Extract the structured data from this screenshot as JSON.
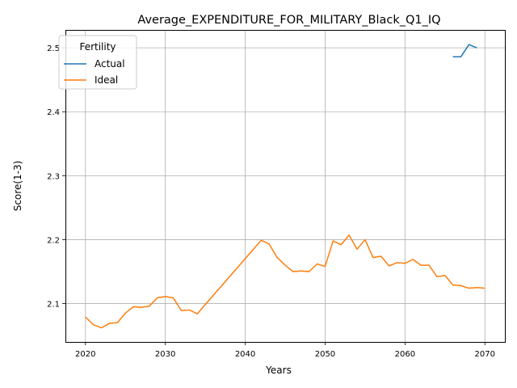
{
  "chart_data": {
    "type": "line",
    "title": "Average_EXPENDITURE_FOR_MILITARY_Black_Q1_IQ",
    "xlabel": "Years",
    "ylabel": "Score(1-3)",
    "xlim": [
      2017.5,
      2072.5
    ],
    "ylim": [
      2.04,
      2.528
    ],
    "xticks": [
      2020,
      2030,
      2040,
      2050,
      2060,
      2070
    ],
    "yticks": [
      2.1,
      2.2,
      2.3,
      2.4,
      2.5
    ],
    "xtick_labels": [
      "2020",
      "2030",
      "2040",
      "2050",
      "2060",
      "2070"
    ],
    "ytick_labels": [
      "2.1",
      "2.2",
      "2.3",
      "2.4",
      "2.5"
    ],
    "grid": true,
    "legend": {
      "title": "Fertility",
      "position": "upper-left"
    },
    "series": [
      {
        "name": "Actual",
        "color": "#1f77b4",
        "x": [
          2066,
          2067,
          2068,
          2069
        ],
        "y": [
          2.486,
          2.486,
          2.505,
          2.5
        ]
      },
      {
        "name": "Ideal",
        "color": "#ff7f0e",
        "x": [
          2020,
          2021,
          2022,
          2023,
          2024,
          2025,
          2026,
          2027,
          2028,
          2029,
          2030,
          2031,
          2032,
          2033,
          2034,
          2042,
          2043,
          2044,
          2045,
          2046,
          2047,
          2048,
          2049,
          2050,
          2051,
          2052,
          2053,
          2054,
          2055,
          2056,
          2057,
          2058,
          2059,
          2060,
          2061,
          2062,
          2063,
          2064,
          2065,
          2066,
          2067,
          2068,
          2069,
          2070
        ],
        "y": [
          2.079,
          2.067,
          2.062,
          2.069,
          2.07,
          2.085,
          2.095,
          2.094,
          2.096,
          2.109,
          2.111,
          2.109,
          2.089,
          2.09,
          2.084,
          2.199,
          2.193,
          2.172,
          2.16,
          2.15,
          2.151,
          2.15,
          2.162,
          2.158,
          2.198,
          2.192,
          2.207,
          2.185,
          2.2,
          2.172,
          2.174,
          2.159,
          2.164,
          2.163,
          2.169,
          2.16,
          2.16,
          2.142,
          2.144,
          2.129,
          2.128,
          2.124,
          2.125,
          2.124
        ]
      }
    ]
  }
}
